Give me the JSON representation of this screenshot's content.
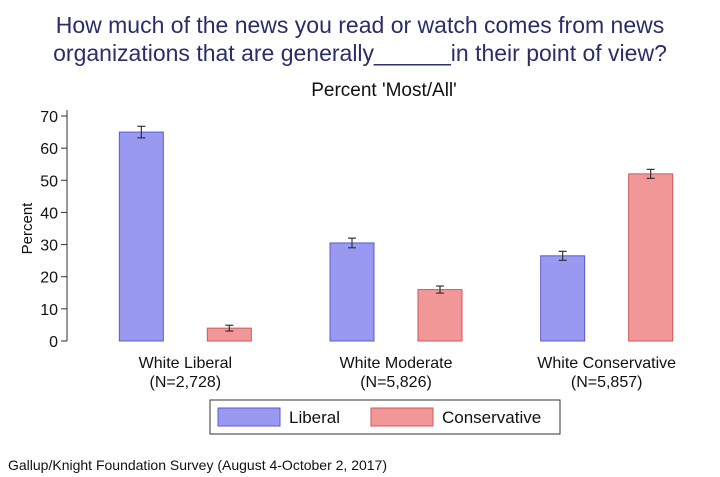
{
  "title": {
    "line1": "How much of the news you read or watch comes from news",
    "line2": "organizations that are generally______in their point of view?"
  },
  "subtitle": "Percent 'Most/All'",
  "chart_data": {
    "type": "bar",
    "title": "How much of the news you read or watch comes from news organizations that are generally______in their point of view?",
    "subtitle": "Percent 'Most/All'",
    "ylabel": "Percent",
    "xlabel": "",
    "ylim": [
      0,
      70
    ],
    "yticks": [
      0,
      10,
      20,
      30,
      40,
      50,
      60,
      70
    ],
    "grid": false,
    "categories": [
      {
        "name": "White Liberal",
        "n": "(N=2,728)"
      },
      {
        "name": "White Moderate",
        "n": "(N=5,826)"
      },
      {
        "name": "White Conservative",
        "n": "(N=5,857)"
      }
    ],
    "series": [
      {
        "name": "Liberal",
        "color": "#9999f2",
        "border": "#5a5ad0",
        "values": [
          65,
          30.5,
          26.5
        ],
        "err": [
          1.8,
          1.5,
          1.4
        ]
      },
      {
        "name": "Conservative",
        "color": "#f29797",
        "border": "#d05a5a",
        "values": [
          4,
          16,
          52
        ],
        "err": [
          0.9,
          1.1,
          1.4
        ]
      }
    ],
    "legend": {
      "placement": "bottom-center",
      "entries": [
        "Liberal",
        "Conservative"
      ]
    }
  },
  "source": "Gallup/Knight Foundation Survey (August 4-October 2, 2017)"
}
